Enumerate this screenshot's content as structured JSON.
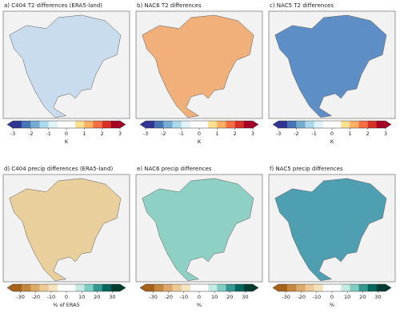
{
  "panels": [
    {
      "title": "a) C404 T2 differences (ERA5-land)",
      "colorbar": {
        "label": "K",
        "range": [
          -3,
          3
        ],
        "ticks": [
          -3,
          -2,
          -1,
          0,
          1,
          2,
          3
        ],
        "colors": [
          "#313695",
          "#4575b4",
          "#74add1",
          "#abd9e9",
          "#e0f3f8",
          "#ffffff",
          "#ffffff",
          "#fee090",
          "#fdae61",
          "#f46d43",
          "#d73027",
          "#a50026"
        ]
      }
    },
    {
      "title": "b) NAC6 T2 differences",
      "colorbar": {
        "label": "K",
        "range": [
          -3,
          3
        ],
        "ticks": [
          -3,
          -2,
          -1,
          0,
          1,
          2,
          3
        ],
        "colors": [
          "#313695",
          "#4575b4",
          "#74add1",
          "#abd9e9",
          "#e0f3f8",
          "#ffffff",
          "#ffffff",
          "#fee090",
          "#fdae61",
          "#f46d43",
          "#d73027",
          "#a50026"
        ]
      }
    },
    {
      "title": "c) NAC5 T2 differences",
      "colorbar": {
        "label": "K",
        "range": [
          -3,
          3
        ],
        "ticks": [
          -3,
          -2,
          -1,
          0,
          1,
          2,
          3
        ],
        "colors": [
          "#313695",
          "#4575b4",
          "#74add1",
          "#abd9e9",
          "#e0f3f8",
          "#ffffff",
          "#ffffff",
          "#fee090",
          "#fdae61",
          "#f46d43",
          "#d73027",
          "#a50026"
        ]
      }
    },
    {
      "title": "d) C404 precip differences (ERA5-land)",
      "colorbar": {
        "label": "% of ERA5",
        "range": [
          -35,
          35
        ],
        "ticks": [
          -30,
          -20,
          -10,
          0,
          10,
          20,
          30
        ],
        "colors": [
          "#a6611a",
          "#c4873f",
          "#dba96a",
          "#ecc995",
          "#f6e3bd",
          "#ffffff",
          "#ffffff",
          "#c7eae5",
          "#80cdc1",
          "#35978f",
          "#01665e",
          "#003c30"
        ]
      }
    },
    {
      "title": "e) NAC6 precip differences",
      "colorbar": {
        "label": "%",
        "range": [
          -35,
          35
        ],
        "ticks": [
          -30,
          -20,
          -10,
          0,
          10,
          20,
          30
        ],
        "colors": [
          "#a6611a",
          "#c4873f",
          "#dba96a",
          "#ecc995",
          "#f6e3bd",
          "#ffffff",
          "#ffffff",
          "#c7eae5",
          "#80cdc1",
          "#35978f",
          "#01665e",
          "#003c30"
        ]
      }
    },
    {
      "title": "f) NAC5 precip differences",
      "colorbar": {
        "label": "%",
        "range": [
          -35,
          35
        ],
        "ticks": [
          -30,
          -20,
          -10,
          0,
          10,
          20,
          30
        ],
        "colors": [
          "#a6611a",
          "#c4873f",
          "#dba96a",
          "#ecc995",
          "#f6e3bd",
          "#ffffff",
          "#ffffff",
          "#c7eae5",
          "#80cdc1",
          "#35978f",
          "#01665e",
          "#003c30"
        ]
      }
    }
  ]
}
